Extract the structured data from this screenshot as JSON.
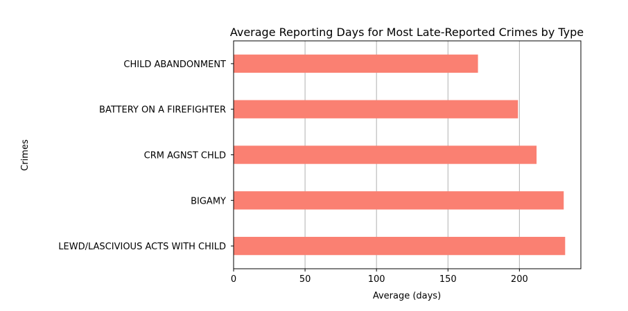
{
  "chart_data": {
    "type": "bar",
    "orientation": "horizontal",
    "title": "Average Reporting Days for Most Late-Reported Crimes by Type",
    "xlabel": "Average (days)",
    "ylabel": "Crimes",
    "categories": [
      "LEWD/LASCIVIOUS ACTS WITH CHILD",
      "BIGAMY",
      "CRM AGNST CHLD",
      "BATTERY ON A FIREFIGHTER",
      "CHILD ABANDONMENT"
    ],
    "values": [
      232,
      231,
      212,
      199,
      171
    ],
    "xlim": [
      0,
      243
    ],
    "xticks": [
      0,
      50,
      100,
      150,
      200
    ],
    "grid": "x",
    "bar_color": "#fa8072"
  }
}
